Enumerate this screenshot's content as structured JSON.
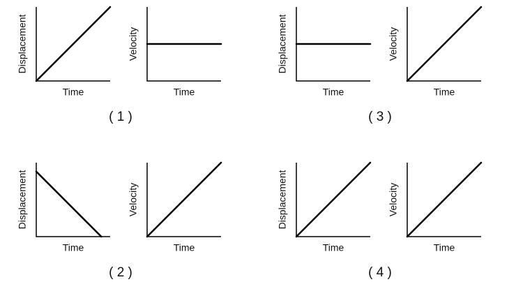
{
  "panels": [
    {
      "label": "( 1 )",
      "graphs": [
        {
          "y_label": "Displacement",
          "x_label": "Time"
        },
        {
          "y_label": "Velocity",
          "x_label": "Time"
        }
      ]
    },
    {
      "label": "( 2 )",
      "graphs": [
        {
          "y_label": "Displacement",
          "x_label": "Time"
        },
        {
          "y_label": "Velocity",
          "x_label": "Time"
        }
      ]
    },
    {
      "label": "( 3 )",
      "graphs": [
        {
          "y_label": "Displacement",
          "x_label": "Time"
        },
        {
          "y_label": "Velocity",
          "x_label": "Time"
        }
      ]
    },
    {
      "label": "( 4 )",
      "graphs": [
        {
          "y_label": "Displacement",
          "x_label": "Time"
        },
        {
          "y_label": "Velocity",
          "x_label": "Time"
        }
      ]
    }
  ]
}
